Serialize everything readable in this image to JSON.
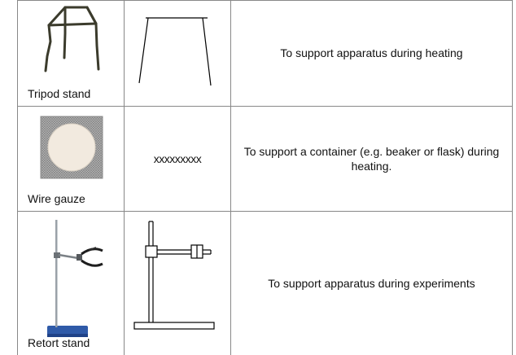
{
  "rows": [
    {
      "name": "Tripod stand",
      "symbol_text": "",
      "use": "To support apparatus during heating"
    },
    {
      "name": "Wire gauze",
      "symbol_text": "xxxxxxxxx",
      "use": "To support a container (e.g. beaker or flask) during heating."
    },
    {
      "name": "Retort stand",
      "symbol_text": "",
      "use": "To support apparatus during experiments"
    }
  ],
  "colors": {
    "border": "#888888",
    "tripod_metal": "#3b3b2c",
    "gauze_mesh": "#9a9a9a",
    "gauze_center": "#f2eadf",
    "stand_base": "#2f5aa8",
    "stand_rod": "#9aa1a8"
  },
  "icons": [
    "tripod-stand-photo",
    "wire-gauze-photo",
    "retort-stand-photo",
    "tripod-stand-symbol",
    "retort-stand-symbol"
  ]
}
